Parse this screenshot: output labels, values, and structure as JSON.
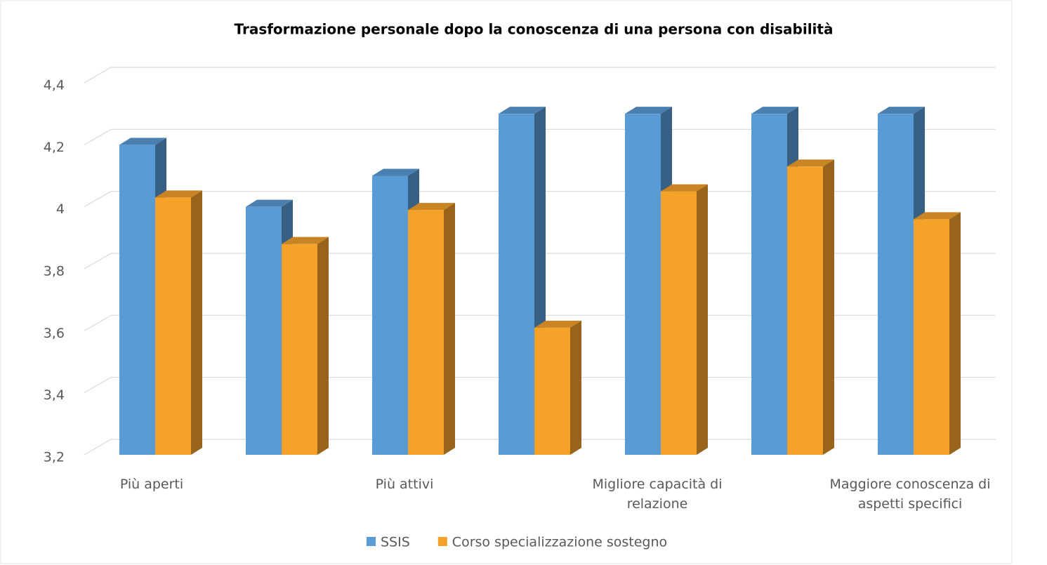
{
  "chart_data": {
    "type": "bar3d",
    "title": "Trasformazione personale dopo la conoscenza di una persona con disabilità",
    "categories": [
      "Più aperti",
      null,
      "Più attivi",
      null,
      "Migliore capacità di relazione",
      null,
      "Maggiore conoscenza di aspetti specifici"
    ],
    "series": [
      {
        "name": "SSIS",
        "color": "#5b9bd5",
        "values": [
          4.2,
          4.0,
          4.1,
          4.3,
          4.3,
          4.3,
          4.3
        ]
      },
      {
        "name": "Corso specializzazione sostegno",
        "color": "#f5a22b",
        "values": [
          4.03,
          3.88,
          3.99,
          3.61,
          4.05,
          4.13,
          3.96
        ]
      }
    ],
    "ylim": [
      3.2,
      4.4
    ],
    "yticks": [
      {
        "value": 3.2,
        "label": "3,2"
      },
      {
        "value": 3.4,
        "label": "3,4"
      },
      {
        "value": 3.6,
        "label": "3,6"
      },
      {
        "value": 3.8,
        "label": "3,8"
      },
      4,
      {
        "value": 4.2,
        "label": "4,2"
      },
      {
        "value": 4.4,
        "label": "4,4"
      }
    ],
    "grid": true,
    "legend": "bottom"
  }
}
